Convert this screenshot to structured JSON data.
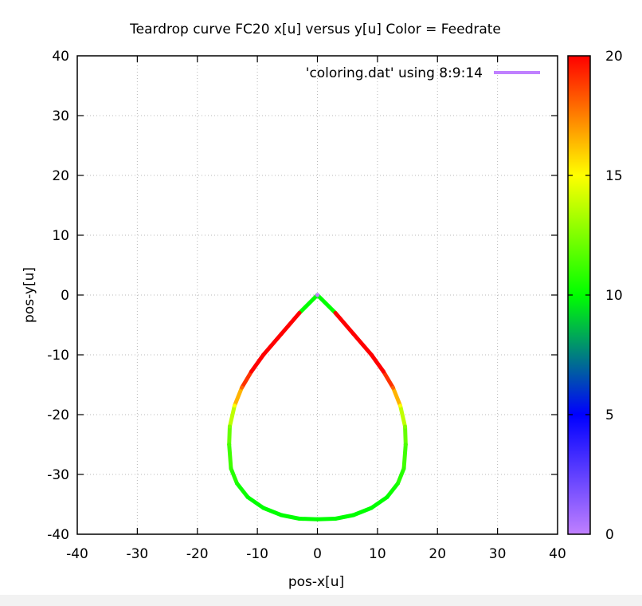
{
  "chart_data": {
    "type": "line",
    "title": "Teardrop curve FC20 x[u] versus y[u] Color = Feedrate",
    "xlabel": "pos-x[u]",
    "ylabel": "pos-y[u]",
    "xlim": [
      -40,
      40
    ],
    "ylim": [
      -40,
      40
    ],
    "x_ticks": [
      "-40",
      "-30",
      "-20",
      "-10",
      "0",
      "10",
      "20",
      "30",
      "40"
    ],
    "y_ticks": [
      "-40",
      "-30",
      "-20",
      "-10",
      "0",
      "10",
      "20",
      "30",
      "40"
    ],
    "grid": true,
    "legend": {
      "position": "top-right",
      "label": "'coloring.dat' using 8:9:14",
      "color": "#c080ff"
    },
    "colorbar": {
      "range": [
        0,
        20
      ],
      "ticks": [
        "0",
        "5",
        "10",
        "15",
        "20"
      ],
      "colormap": [
        "#c080ff",
        "#0000ff",
        "#00ff00",
        "#ffff00",
        "#ff0000"
      ]
    },
    "series": [
      {
        "x": [
          0,
          -3,
          -6,
          -9,
          -11,
          -12.6,
          -13.8,
          -14.6,
          -14.7,
          -14.4,
          -13.4,
          -11.6,
          -9,
          -6,
          -3,
          0,
          3,
          6,
          9,
          11.6,
          13.4,
          14.4,
          14.7,
          14.6,
          13.8,
          12.6,
          11,
          9,
          6,
          3,
          0
        ],
        "y": [
          0,
          -3,
          -6.5,
          -10,
          -12.8,
          -15.5,
          -18.5,
          -22,
          -25,
          -29,
          -31.5,
          -33.8,
          -35.6,
          -36.8,
          -37.4,
          -37.5,
          -37.4,
          -36.8,
          -35.6,
          -33.8,
          -31.5,
          -29,
          -25,
          -22,
          -18.5,
          -15.5,
          -12.8,
          -10,
          -6.5,
          -3,
          0
        ],
        "color_value": [
          0,
          20,
          20,
          20,
          20,
          18,
          15,
          12.5,
          11.5,
          11,
          10.5,
          10,
          10,
          10,
          10,
          10,
          10,
          10,
          10,
          10,
          10.5,
          11,
          11.5,
          12.5,
          15,
          18,
          20,
          20,
          20,
          20,
          0
        ]
      }
    ]
  }
}
